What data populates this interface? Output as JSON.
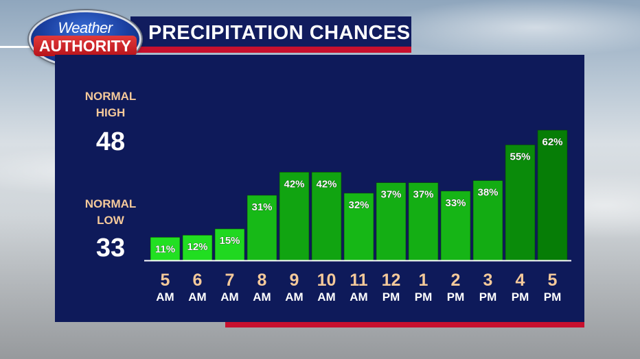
{
  "header": {
    "logo_top": "Weather",
    "logo_bottom": "AUTHORITY",
    "title": "PRECIPITATION CHANCES"
  },
  "normals": {
    "high_label_line1": "NORMAL",
    "high_label_line2": "HIGH",
    "high_value": "48",
    "low_label_line1": "NORMAL",
    "low_label_line2": "LOW",
    "low_value": "33"
  },
  "colors": {
    "panel": "#0e1a5a",
    "accent_red": "#c8102e",
    "label_tan": "#f4c99a",
    "bar_light": "#22e022",
    "bar_dark": "#067d06"
  },
  "chart_data": {
    "type": "bar",
    "title": "PRECIPITATION CHANCES",
    "xlabel": "",
    "ylabel": "",
    "unit": "%",
    "ylim": [
      0,
      62
    ],
    "grid": false,
    "categories": [
      {
        "hour": "5",
        "period": "AM"
      },
      {
        "hour": "6",
        "period": "AM"
      },
      {
        "hour": "7",
        "period": "AM"
      },
      {
        "hour": "8",
        "period": "AM"
      },
      {
        "hour": "9",
        "period": "AM"
      },
      {
        "hour": "10",
        "period": "AM"
      },
      {
        "hour": "11",
        "period": "AM"
      },
      {
        "hour": "12",
        "period": "PM"
      },
      {
        "hour": "1",
        "period": "PM"
      },
      {
        "hour": "2",
        "period": "PM"
      },
      {
        "hour": "3",
        "period": "PM"
      },
      {
        "hour": "4",
        "period": "PM"
      },
      {
        "hour": "5",
        "period": "PM"
      }
    ],
    "values": [
      11,
      12,
      15,
      31,
      42,
      42,
      32,
      37,
      37,
      33,
      38,
      55,
      62
    ]
  }
}
